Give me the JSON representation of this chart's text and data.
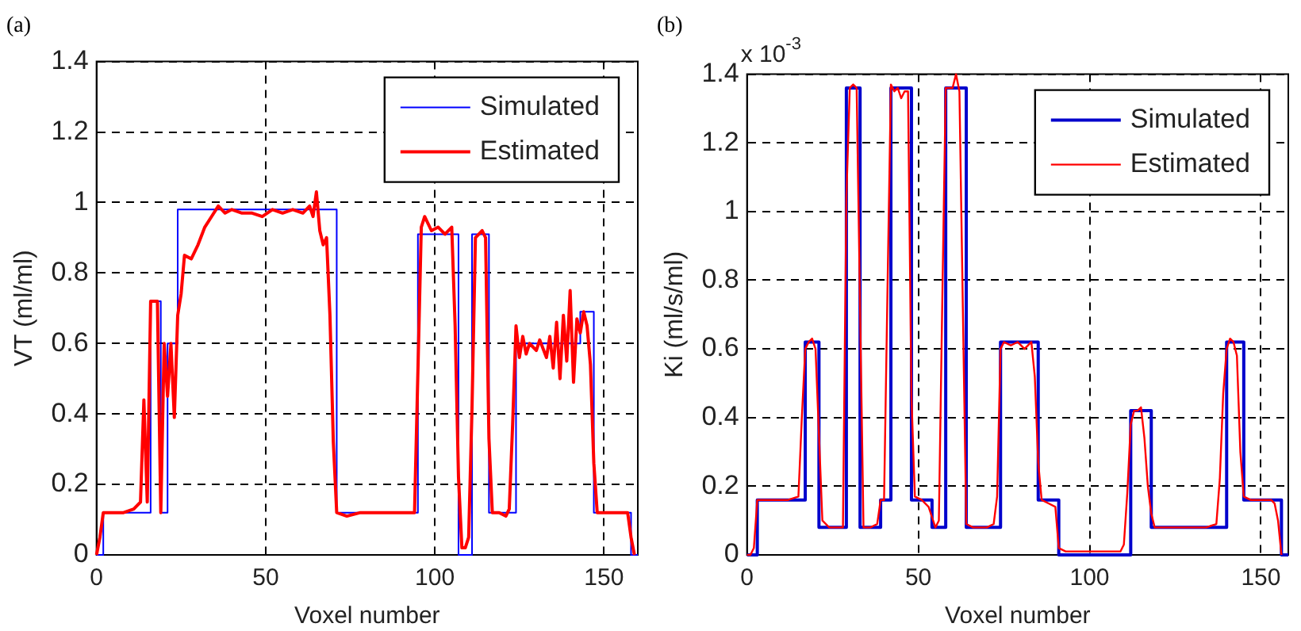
{
  "chart_data": [
    {
      "type": "line",
      "title": "(a)",
      "xlabel": "Voxel number",
      "ylabel": "VT (ml/ml)",
      "xlim": [
        0,
        160
      ],
      "xticks": [
        0,
        50,
        100,
        150
      ],
      "ylim": [
        0,
        1.4
      ],
      "yticks": [
        0,
        0.2,
        0.4,
        0.6,
        0.8,
        1,
        1.2,
        1.4
      ],
      "grid": true,
      "legend": "top right",
      "line_style": "solid",
      "marker": "none",
      "series": [
        {
          "name": "Simulated",
          "type": "step",
          "color": "#0000ff",
          "x": [
            0,
            2,
            16,
            19,
            21,
            24,
            71,
            95,
            107,
            111,
            116,
            124,
            143,
            147,
            158,
            160
          ],
          "values": [
            0,
            0.12,
            0.72,
            0.12,
            0.6,
            0.98,
            0.12,
            0.91,
            0,
            0.91,
            0.12,
            0.6,
            0.69,
            0.12,
            0,
            0
          ]
        },
        {
          "name": "Estimated",
          "type": "line",
          "color": "#ff0000",
          "x": [
            0,
            1,
            2,
            5,
            8,
            11,
            13,
            14,
            15,
            16,
            17,
            18,
            19,
            20,
            21,
            22,
            23,
            24,
            25,
            26,
            28,
            30,
            32,
            34,
            36,
            38,
            40,
            43,
            46,
            49,
            52,
            55,
            58,
            61,
            63,
            64,
            65,
            66,
            67,
            68,
            69,
            70,
            71,
            74,
            78,
            82,
            86,
            90,
            94,
            95,
            96,
            97,
            99,
            101,
            103,
            105,
            106,
            107,
            108,
            109,
            110,
            111,
            112,
            114,
            115,
            116,
            117,
            119,
            121,
            122,
            123,
            124,
            125,
            126,
            127,
            128,
            130,
            131,
            133,
            134,
            135,
            136,
            137,
            138,
            139,
            140,
            141,
            142,
            143,
            144,
            145,
            146,
            147,
            148,
            151,
            154,
            157,
            158,
            159
          ],
          "values": [
            0,
            0.05,
            0.12,
            0.12,
            0.12,
            0.13,
            0.15,
            0.44,
            0.15,
            0.72,
            0.72,
            0.72,
            0.12,
            0.6,
            0.45,
            0.6,
            0.39,
            0.68,
            0.74,
            0.85,
            0.84,
            0.88,
            0.93,
            0.96,
            0.99,
            0.97,
            0.98,
            0.97,
            0.97,
            0.96,
            0.98,
            0.97,
            0.98,
            0.97,
            0.99,
            0.96,
            1.03,
            0.92,
            0.88,
            0.9,
            0.68,
            0.32,
            0.12,
            0.11,
            0.12,
            0.12,
            0.12,
            0.12,
            0.12,
            0.52,
            0.93,
            0.96,
            0.92,
            0.93,
            0.91,
            0.93,
            0.65,
            0.22,
            0.02,
            0.02,
            0.05,
            0.42,
            0.9,
            0.92,
            0.9,
            0.33,
            0.12,
            0.12,
            0.11,
            0.13,
            0.37,
            0.65,
            0.56,
            0.62,
            0.57,
            0.6,
            0.58,
            0.61,
            0.56,
            0.62,
            0.53,
            0.66,
            0.5,
            0.68,
            0.55,
            0.75,
            0.49,
            0.67,
            0.63,
            0.69,
            0.65,
            0.54,
            0.26,
            0.12,
            0.12,
            0.12,
            0.12,
            0.05,
            0
          ]
        }
      ]
    },
    {
      "type": "line",
      "title": "(b)",
      "xlabel": "Voxel number",
      "ylabel": "Ki (ml/s/ml)",
      "annotations": [
        "x 10$^{-3}$"
      ],
      "xlim": [
        0,
        158
      ],
      "xticks": [
        0,
        50,
        100,
        150
      ],
      "ylim": [
        0,
        1.4
      ],
      "yticks": [
        0,
        0.2,
        0.4,
        0.6,
        0.8,
        1,
        1.2,
        1.4
      ],
      "grid": true,
      "legend": "top right",
      "line_style": "solid",
      "marker": "none",
      "series": [
        {
          "name": "Simulated",
          "type": "step",
          "color": "#0000cc",
          "x": [
            0,
            3,
            17,
            21,
            29,
            33,
            39,
            42,
            48,
            54,
            58,
            64,
            74,
            85,
            91,
            112,
            118,
            140,
            145,
            156,
            158
          ],
          "values": [
            0,
            0.16,
            0.62,
            0.08,
            1.36,
            0.08,
            0.16,
            1.36,
            0.16,
            0.08,
            1.36,
            0.08,
            0.62,
            0.16,
            0,
            0.42,
            0.08,
            0.62,
            0.16,
            0,
            0
          ]
        },
        {
          "name": "Estimated",
          "type": "line",
          "color": "#ff0000",
          "x": [
            0,
            1,
            2,
            3,
            6,
            9,
            12,
            15,
            16,
            17,
            18,
            19,
            20,
            21,
            22,
            24,
            26,
            28,
            29,
            30,
            31,
            32,
            33,
            34,
            36,
            38,
            39,
            40,
            41,
            42,
            43,
            44,
            45,
            46,
            47,
            48,
            49,
            51,
            53,
            54,
            55,
            56,
            57,
            58,
            60,
            61,
            62,
            63,
            64,
            66,
            68,
            70,
            72,
            73,
            74,
            75,
            77,
            79,
            81,
            83,
            84,
            85,
            86,
            88,
            90,
            91,
            93,
            95,
            98,
            101,
            104,
            107,
            109,
            110,
            111,
            112,
            113,
            114,
            115,
            116,
            117,
            118,
            119,
            122,
            125,
            128,
            131,
            134,
            137,
            138,
            139,
            140,
            141,
            142,
            143,
            144,
            145,
            147,
            150,
            153,
            154,
            155,
            156
          ],
          "values": [
            0,
            0,
            0.02,
            0.16,
            0.16,
            0.16,
            0.16,
            0.17,
            0.4,
            0.6,
            0.62,
            0.63,
            0.6,
            0.35,
            0.1,
            0.08,
            0.08,
            0.08,
            1.04,
            1.36,
            1.37,
            1.36,
            0.72,
            0.08,
            0.08,
            0.09,
            0.16,
            0.16,
            0.77,
            1.37,
            1.35,
            1.36,
            1.33,
            1.35,
            1.35,
            0.46,
            0.17,
            0.16,
            0.14,
            0.11,
            0.08,
            0.1,
            0.74,
            1.36,
            1.36,
            1.4,
            1.35,
            0.72,
            0.09,
            0.08,
            0.08,
            0.08,
            0.09,
            0.17,
            0.6,
            0.62,
            0.61,
            0.62,
            0.6,
            0.62,
            0.52,
            0.27,
            0.16,
            0.15,
            0.14,
            0.02,
            0.01,
            0.01,
            0.01,
            0.01,
            0.01,
            0.01,
            0.01,
            0.03,
            0.18,
            0.38,
            0.42,
            0.42,
            0.43,
            0.34,
            0.2,
            0.12,
            0.08,
            0.08,
            0.08,
            0.08,
            0.08,
            0.08,
            0.09,
            0.22,
            0.47,
            0.6,
            0.63,
            0.62,
            0.58,
            0.3,
            0.17,
            0.16,
            0.16,
            0.16,
            0.15,
            0.1,
            0
          ]
        }
      ]
    }
  ]
}
